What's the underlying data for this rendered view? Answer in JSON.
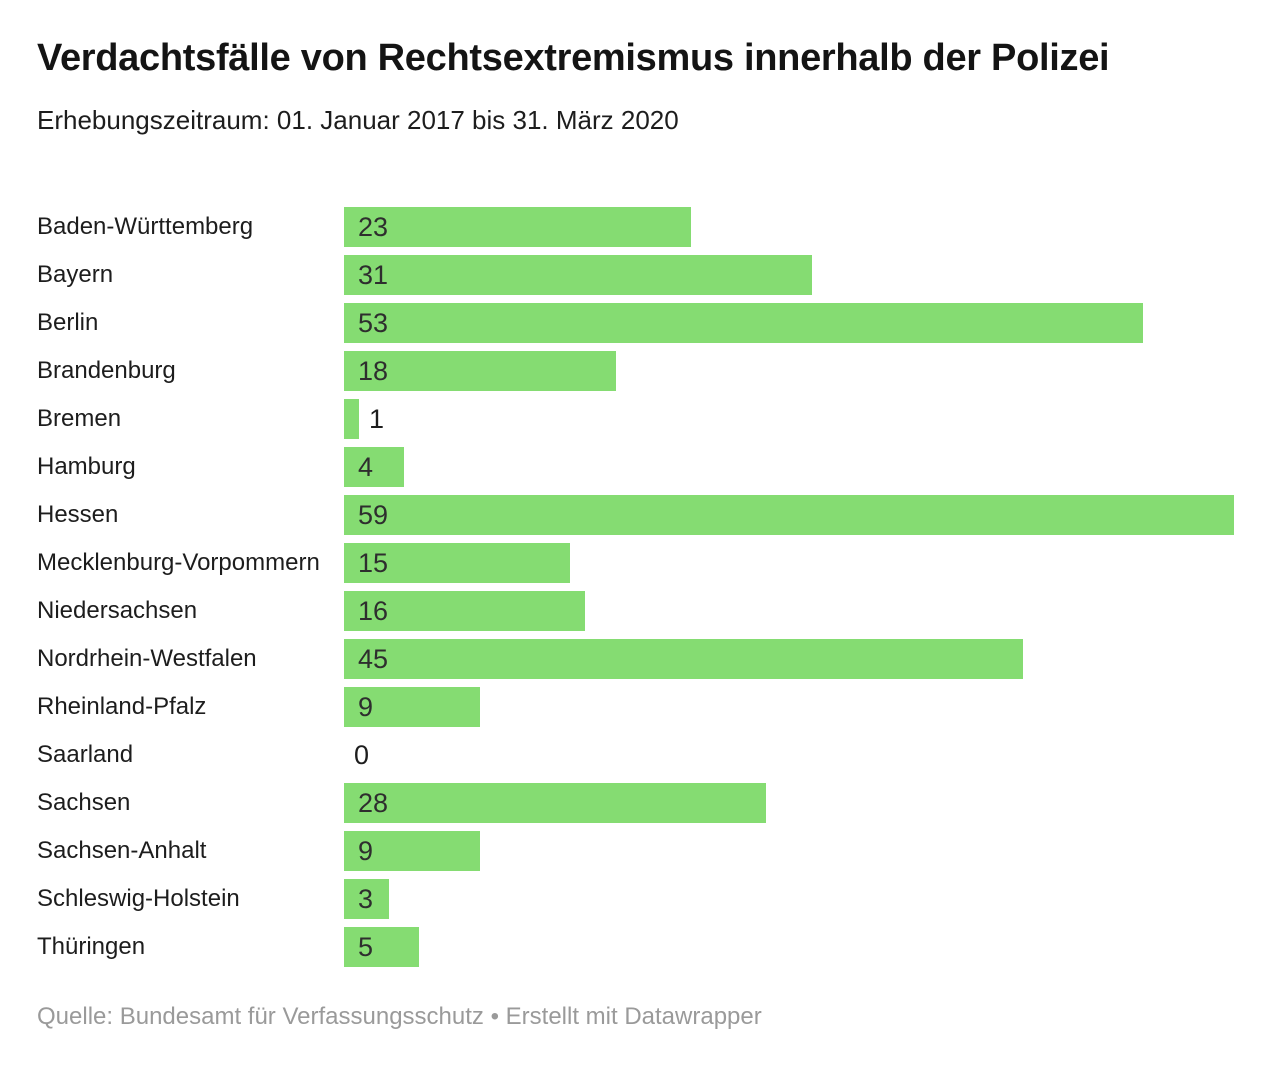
{
  "chart_data": {
    "type": "bar",
    "orientation": "horizontal",
    "title": "Verdachtsfälle von Rechtsextremismus innerhalb der Polizei",
    "subtitle": "Erhebungszeitraum: 01. Januar 2017 bis 31. März 2020",
    "categories": [
      "Baden-Württemberg",
      "Bayern",
      "Berlin",
      "Brandenburg",
      "Bremen",
      "Hamburg",
      "Hessen",
      "Mecklenburg-Vorpommern",
      "Niedersachsen",
      "Nordrhein-Westfalen",
      "Rheinland-Pfalz",
      "Saarland",
      "Sachsen",
      "Sachsen-Anhalt",
      "Schleswig-Holstein",
      "Thüringen"
    ],
    "values": [
      23,
      31,
      53,
      18,
      1,
      4,
      59,
      15,
      16,
      45,
      9,
      0,
      28,
      9,
      3,
      5
    ],
    "xlabel": "",
    "ylabel": "",
    "xlim": [
      0,
      59
    ],
    "grid": false,
    "legend": "none",
    "bar_color": "#85dc72",
    "value_label_color": "#2e2e2e",
    "value_label_position": "inside-left, outside-right when bar too short"
  },
  "footer": {
    "source": "Quelle: Bundesamt für Verfassungsschutz",
    "separator": " • ",
    "attribution": "Erstellt mit Datawrapper"
  }
}
